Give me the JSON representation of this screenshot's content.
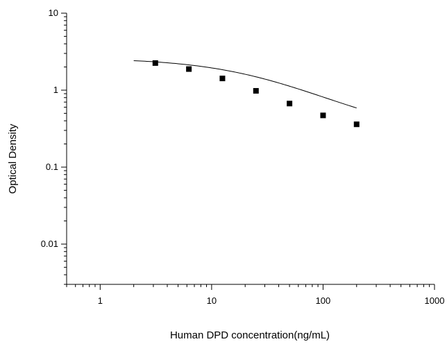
{
  "chart_data": {
    "type": "scatter",
    "title": "",
    "xlabel": "Human DPD concentration(ng/mL)",
    "ylabel": "Optical Density",
    "x_scale": "log",
    "y_scale": "log",
    "xlim": [
      0.5,
      1000
    ],
    "ylim": [
      0.003,
      10
    ],
    "x_ticks": [
      {
        "value": 1,
        "label": "1"
      },
      {
        "value": 10,
        "label": "10"
      },
      {
        "value": 100,
        "label": "100"
      },
      {
        "value": 1000,
        "label": "1000"
      }
    ],
    "y_ticks": [
      {
        "value": 10,
        "label": "10"
      },
      {
        "value": 1,
        "label": "1"
      },
      {
        "value": 0.1,
        "label": "0.1"
      },
      {
        "value": 0.01,
        "label": "0.01"
      }
    ],
    "grid": false,
    "legend": "none",
    "series": [
      {
        "x": [
          3.125,
          6.25,
          12.5,
          25,
          50,
          100,
          200
        ],
        "y": [
          2.25,
          1.88,
          1.42,
          0.98,
          0.67,
          0.47,
          0.36
        ],
        "marker": "square",
        "color": "#000000"
      }
    ],
    "fit_curve": {
      "type": "4PL",
      "x_range": [
        2,
        200
      ],
      "A1": 2.62,
      "A2": 0.24,
      "x0": 28,
      "p": 0.9,
      "style": "solid",
      "color": "#000000"
    }
  }
}
